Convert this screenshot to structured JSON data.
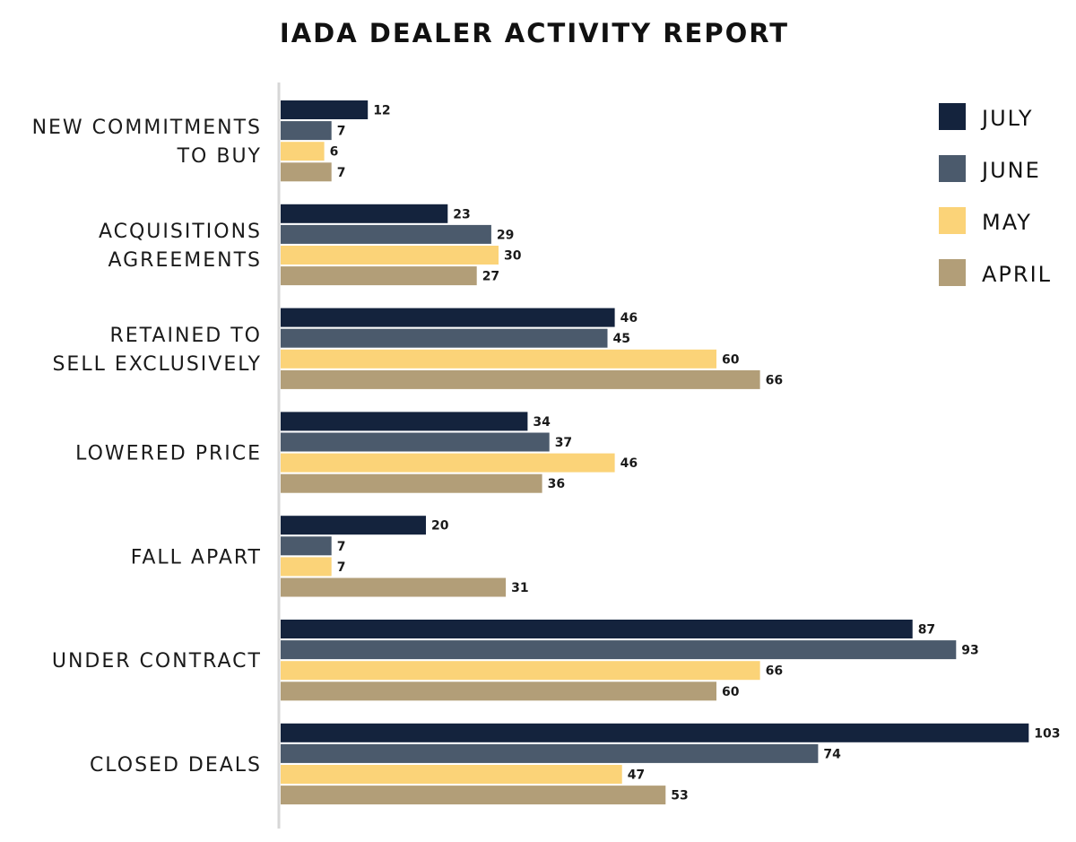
{
  "chart_data": {
    "type": "bar",
    "orientation": "horizontal",
    "title": "IADA DEALER ACTIVITY REPORT",
    "xlabel": "",
    "ylabel": "",
    "xlim": [
      0,
      103
    ],
    "grid": false,
    "legend_position": "top-right",
    "categories": [
      [
        "NEW COMMITMENTS",
        "TO BUY"
      ],
      [
        "ACQUISITIONS",
        "AGREEMENTS"
      ],
      [
        "RETAINED TO",
        "SELL EXCLUSIVELY"
      ],
      [
        "LOWERED PRICE"
      ],
      [
        "FALL APART"
      ],
      [
        "UNDER CONTRACT"
      ],
      [
        "CLOSED DEALS"
      ]
    ],
    "series": [
      {
        "name": "JULY",
        "color": "#14233d",
        "values": [
          12,
          23,
          46,
          34,
          20,
          87,
          103
        ]
      },
      {
        "name": "JUNE",
        "color": "#4b5a6c",
        "values": [
          7,
          29,
          45,
          37,
          7,
          93,
          74
        ]
      },
      {
        "name": "MAY",
        "color": "#fbd378",
        "values": [
          6,
          30,
          60,
          46,
          7,
          66,
          47
        ]
      },
      {
        "name": "APRIL",
        "color": "#b29e78",
        "values": [
          7,
          27,
          66,
          36,
          31,
          60,
          53
        ]
      }
    ]
  }
}
